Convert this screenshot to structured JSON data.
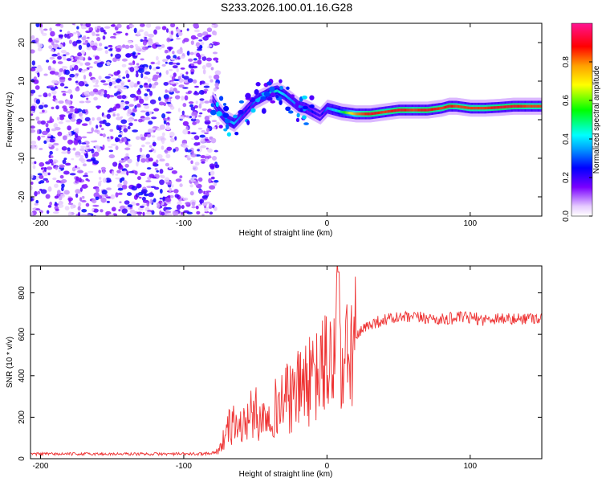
{
  "figure_title": "S233.2026.100.01.16.G28",
  "chart_data": [
    {
      "type": "heatmap",
      "title": "S233.2026.100.01.16.G28",
      "xlabel": "Height of straight line (km)",
      "ylabel": "Frequency (Hz)",
      "xlim": [
        -207,
        150
      ],
      "ylim": [
        -25,
        25
      ],
      "x_ticks": [
        -200,
        -100,
        0,
        100
      ],
      "y_ticks": [
        -20,
        -10,
        0,
        10,
        20
      ],
      "noise_region_x": [
        -207,
        -80
      ],
      "ridge": {
        "x": [
          -80,
          -75,
          -70,
          -65,
          -60,
          -55,
          -50,
          -45,
          -40,
          -35,
          -30,
          -25,
          -20,
          -15,
          -10,
          -5,
          0,
          5,
          10,
          20,
          30,
          40,
          50,
          60,
          70,
          80,
          85,
          90,
          100,
          110,
          120,
          130,
          140,
          150
        ],
        "freq": [
          5,
          2,
          0,
          -1,
          1,
          3,
          5,
          6,
          7,
          7.5,
          6.5,
          5,
          3.5,
          3,
          2,
          1,
          3,
          2.5,
          2,
          1.5,
          1.5,
          2,
          2.5,
          2.5,
          2.5,
          3,
          3.5,
          3.5,
          3,
          3,
          3.2,
          3.5,
          3.5,
          3.5
        ],
        "amplitude": [
          0.2,
          0.3,
          0.35,
          0.4,
          0.3,
          0.25,
          0.35,
          0.4,
          0.45,
          0.45,
          0.4,
          0.35,
          0.35,
          0.3,
          0.25,
          0.2,
          0.35,
          0.4,
          0.5,
          0.8,
          0.9,
          0.85,
          0.9,
          0.85,
          0.9,
          0.85,
          0.9,
          0.85,
          0.85,
          0.85,
          0.9,
          0.9,
          0.85,
          0.85
        ]
      },
      "colorbar": {
        "label": "Normalized spectral amplitude",
        "range": [
          0,
          1
        ],
        "ticks": [
          "0.0",
          "0.2",
          "0.4",
          "0.6",
          "0.8"
        ],
        "tick_values": [
          0.0,
          0.2,
          0.4,
          0.6,
          0.8
        ]
      }
    },
    {
      "type": "line",
      "xlabel": "Height of straight line (km)",
      "ylabel": "SNR (10 * v/v)",
      "xlim": [
        -207,
        150
      ],
      "ylim": [
        0,
        930
      ],
      "x_ticks": [
        -200,
        -100,
        0,
        100
      ],
      "y_ticks": [
        0,
        200,
        400,
        600,
        800
      ],
      "color": "#ee3333",
      "series": [
        {
          "name": "SNR",
          "x": [
            -207,
            -190,
            -170,
            -150,
            -130,
            -110,
            -90,
            -80,
            -75,
            -72,
            -70,
            -65,
            -60,
            -55,
            -50,
            -45,
            -40,
            -35,
            -30,
            -25,
            -20,
            -15,
            -10,
            -5,
            0,
            3,
            6,
            8,
            10,
            12,
            15,
            20,
            25,
            30,
            40,
            50,
            60,
            70,
            80,
            90,
            100,
            110,
            120,
            130,
            140,
            150
          ],
          "values": [
            20,
            20,
            20,
            20,
            20,
            20,
            20,
            25,
            40,
            100,
            140,
            170,
            150,
            200,
            220,
            190,
            260,
            240,
            300,
            280,
            330,
            380,
            360,
            420,
            460,
            480,
            500,
            900,
            350,
            420,
            500,
            580,
            620,
            650,
            670,
            680,
            680,
            680,
            670,
            680,
            680,
            670,
            680,
            670,
            680,
            680
          ]
        }
      ]
    }
  ]
}
